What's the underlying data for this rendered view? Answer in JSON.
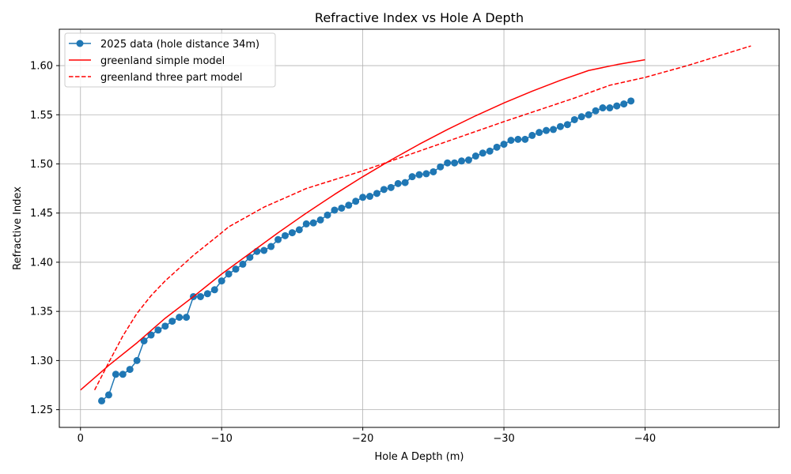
{
  "chart_data": {
    "type": "line",
    "title": "Refractive Index vs Hole A Depth",
    "xlabel": "Hole A Depth (m)",
    "ylabel": "Refractive Index",
    "xlim": [
      1.5,
      -49.5
    ],
    "ylim": [
      1.232,
      1.637
    ],
    "x_ticks": [
      0,
      -10,
      -20,
      -30,
      -40
    ],
    "x_tick_labels": [
      "0",
      "−10",
      "−20",
      "−30",
      "−40"
    ],
    "y_ticks": [
      1.25,
      1.3,
      1.35,
      1.4,
      1.45,
      1.5,
      1.55,
      1.6
    ],
    "y_tick_labels": [
      "1.25",
      "1.30",
      "1.35",
      "1.40",
      "1.45",
      "1.50",
      "1.55",
      "1.60"
    ],
    "grid": true,
    "legend_position": "top-left",
    "series": [
      {
        "name": "2025 data (hole distance 34m)",
        "color": "#1f77b4",
        "style": "solid-with-markers",
        "x": [
          -1.5,
          -2,
          -2.5,
          -3,
          -3.5,
          -4,
          -4.5,
          -5,
          -5.5,
          -6,
          -6.5,
          -7,
          -7.5,
          -8,
          -8.5,
          -9,
          -9.5,
          -10,
          -10.5,
          -11,
          -11.5,
          -12,
          -12.5,
          -13,
          -13.5,
          -14,
          -14.5,
          -15,
          -15.5,
          -16,
          -16.5,
          -17,
          -17.5,
          -18,
          -18.5,
          -19,
          -19.5,
          -20,
          -20.5,
          -21,
          -21.5,
          -22,
          -22.5,
          -23,
          -23.5,
          -24,
          -24.5,
          -25,
          -25.5,
          -26,
          -26.5,
          -27,
          -27.5,
          -28,
          -28.5,
          -29,
          -29.5,
          -30,
          -30.5,
          -31,
          -31.5,
          -32,
          -32.5,
          -33,
          -33.5,
          -34,
          -34.5,
          -35,
          -35.5,
          -36,
          -36.5,
          -37,
          -37.5,
          -38,
          -38.5,
          -39
        ],
        "y": [
          1.259,
          1.265,
          1.286,
          1.286,
          1.291,
          1.3,
          1.32,
          1.326,
          1.331,
          1.335,
          1.34,
          1.344,
          1.344,
          1.365,
          1.365,
          1.368,
          1.372,
          1.381,
          1.388,
          1.393,
          1.398,
          1.405,
          1.411,
          1.412,
          1.416,
          1.423,
          1.427,
          1.43,
          1.433,
          1.439,
          1.44,
          1.443,
          1.448,
          1.453,
          1.455,
          1.458,
          1.462,
          1.466,
          1.467,
          1.47,
          1.474,
          1.476,
          1.48,
          1.481,
          1.487,
          1.489,
          1.49,
          1.492,
          1.497,
          1.501,
          1.501,
          1.503,
          1.504,
          1.508,
          1.511,
          1.513,
          1.517,
          1.52,
          1.524,
          1.525,
          1.525,
          1.529,
          1.532,
          1.534,
          1.535,
          1.538,
          1.54,
          1.545,
          1.548,
          1.55,
          1.554,
          1.557,
          1.557,
          1.559,
          1.561,
          1.564
        ]
      },
      {
        "name": "greenland simple model",
        "color": "#ff0000",
        "style": "solid",
        "x": [
          0,
          -2,
          -4,
          -6,
          -8,
          -10,
          -12,
          -14,
          -16,
          -18,
          -20,
          -22,
          -24,
          -26,
          -28,
          -30,
          -32,
          -34,
          -36,
          -38,
          -40
        ],
        "y": [
          1.27,
          1.295,
          1.318,
          1.343,
          1.365,
          1.388,
          1.409,
          1.43,
          1.45,
          1.469,
          1.487,
          1.504,
          1.52,
          1.535,
          1.549,
          1.562,
          1.574,
          1.585,
          1.595,
          1.601,
          1.606
        ]
      },
      {
        "name": "greenland three part model",
        "color": "#ff0000",
        "style": "dashed",
        "x": [
          -1,
          -2,
          -3,
          -4,
          -5,
          -6,
          -8,
          -10,
          -10.5,
          -13,
          -16,
          -20,
          -25,
          -30,
          -35,
          -37.5,
          -40,
          -43,
          -47.5
        ],
        "y": [
          1.27,
          1.298,
          1.325,
          1.348,
          1.366,
          1.381,
          1.407,
          1.43,
          1.436,
          1.456,
          1.475,
          1.493,
          1.518,
          1.543,
          1.567,
          1.58,
          1.588,
          1.6,
          1.62
        ]
      }
    ]
  }
}
